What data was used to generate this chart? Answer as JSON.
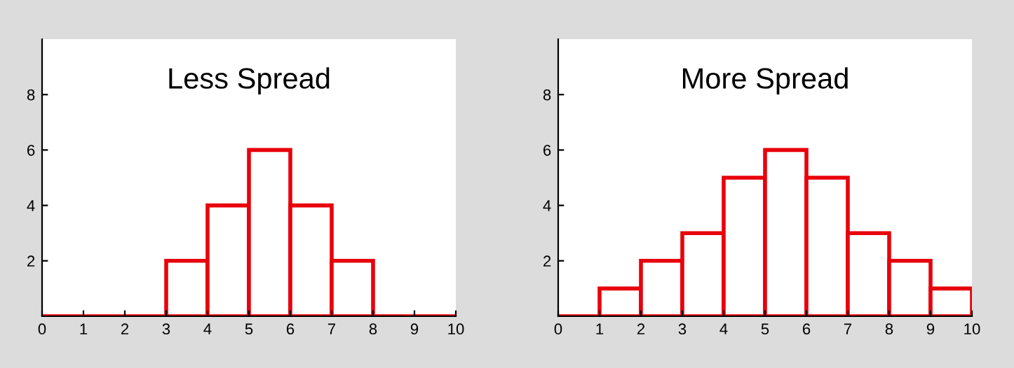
{
  "chart_data": [
    {
      "type": "histogram",
      "title": "Less Spread",
      "bins": [
        0,
        1,
        2,
        3,
        4,
        5,
        6,
        7,
        8,
        9,
        10
      ],
      "values": [
        0,
        0,
        0,
        2,
        4,
        6,
        4,
        2,
        0,
        0
      ],
      "color": "#e8000b",
      "xlim": [
        0,
        10
      ],
      "ylim": [
        0,
        10
      ],
      "xticks": [
        0,
        1,
        2,
        3,
        4,
        5,
        6,
        7,
        8,
        9,
        10
      ],
      "yticks": [
        2,
        4,
        6,
        8
      ],
      "grid": false
    },
    {
      "type": "histogram",
      "title": "More Spread",
      "bins": [
        0,
        1,
        2,
        3,
        4,
        5,
        6,
        7,
        8,
        9,
        10
      ],
      "values": [
        0,
        1,
        2,
        3,
        5,
        6,
        5,
        3,
        2,
        1
      ],
      "color": "#e8000b",
      "xlim": [
        0,
        10
      ],
      "ylim": [
        0,
        10
      ],
      "xticks": [
        0,
        1,
        2,
        3,
        4,
        5,
        6,
        7,
        8,
        9,
        10
      ],
      "yticks": [
        2,
        4,
        6,
        8
      ],
      "grid": false
    }
  ]
}
